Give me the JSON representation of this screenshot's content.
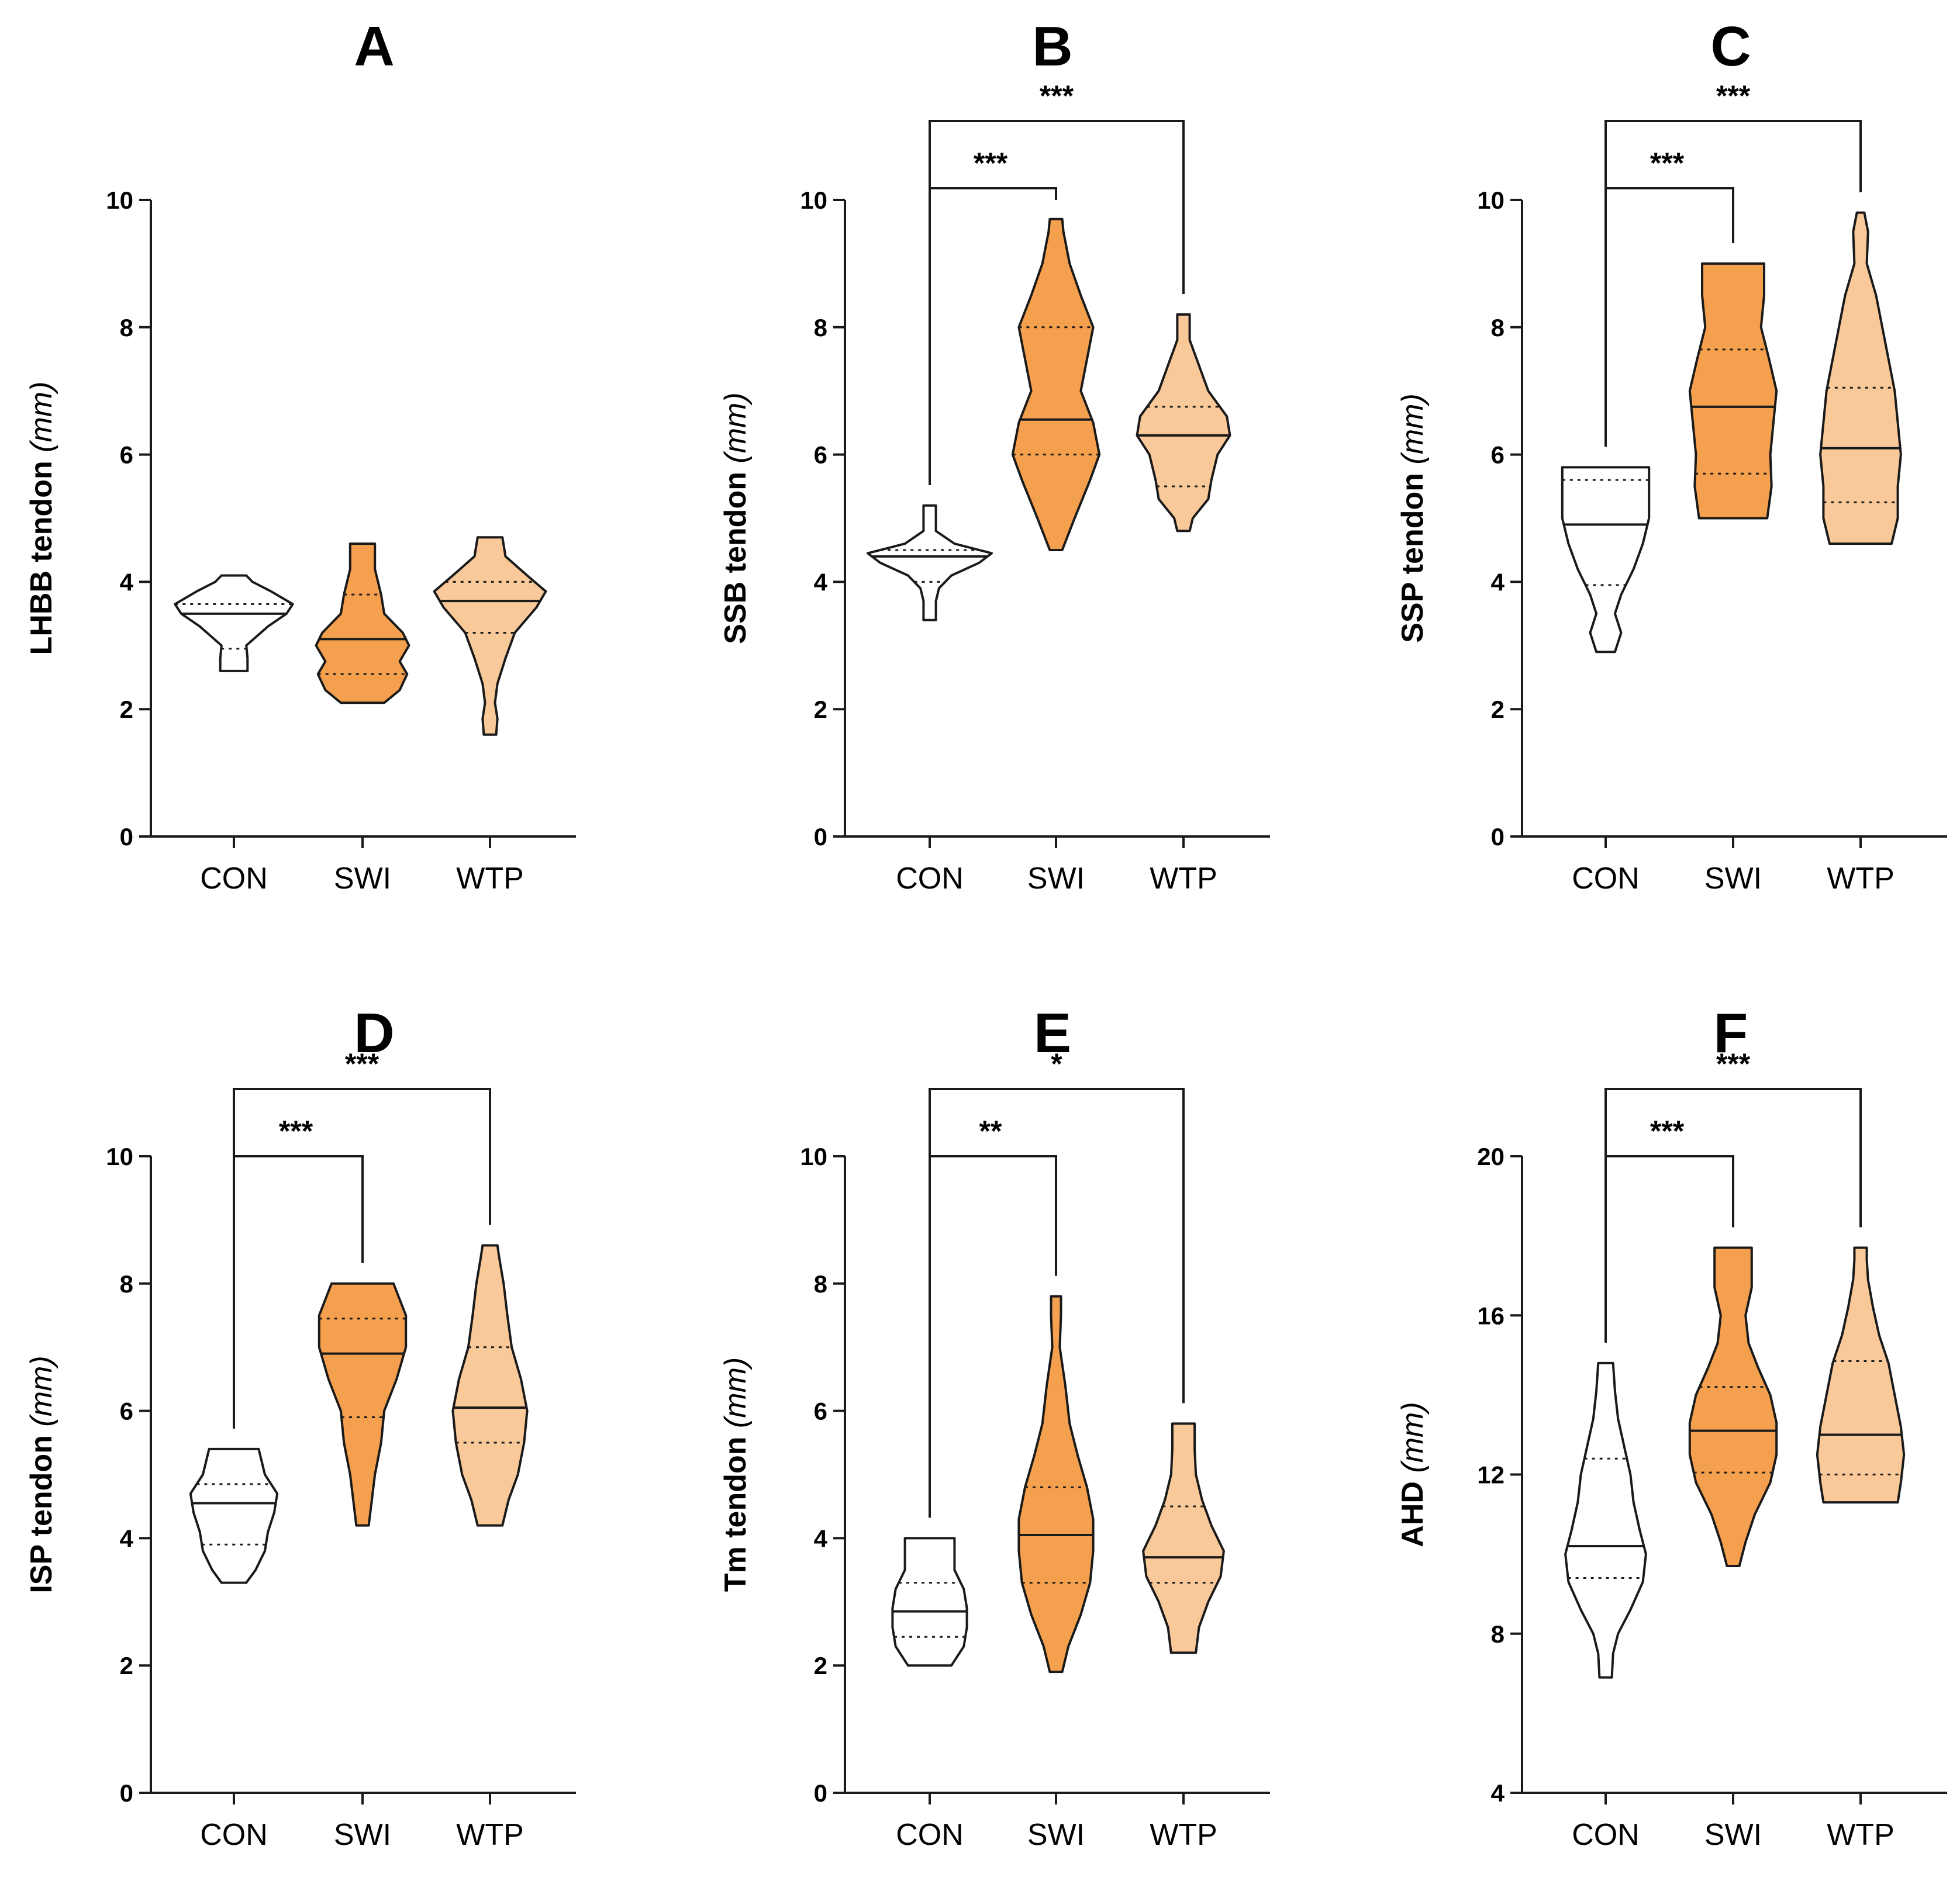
{
  "colors": {
    "CON": "#ffffff",
    "SWI": "#f5a04e",
    "WTP": "#f9c99a",
    "stroke": "#1a1a1a"
  },
  "chart_data": [
    {
      "type": "violin",
      "panel": "A",
      "ylabel": "LHBB tendon",
      "ylabel_unit": "(mm)",
      "ylim": [
        0,
        10
      ],
      "yticks": [
        0,
        2,
        4,
        6,
        8,
        10
      ],
      "categories": [
        "CON",
        "SWI",
        "WTP"
      ],
      "groups": [
        {
          "name": "CON",
          "min": 2.6,
          "max": 4.1,
          "median": 3.5,
          "q1": 2.95,
          "q3": 3.65,
          "profile": [
            [
              2.6,
              0.22
            ],
            [
              2.8,
              0.22
            ],
            [
              3.0,
              0.2
            ],
            [
              3.3,
              0.55
            ],
            [
              3.5,
              0.85
            ],
            [
              3.65,
              0.95
            ],
            [
              3.85,
              0.6
            ],
            [
              4.0,
              0.3
            ],
            [
              4.1,
              0.2
            ]
          ]
        },
        {
          "name": "SWI",
          "min": 2.1,
          "max": 4.6,
          "median": 3.1,
          "q1": 2.55,
          "q3": 3.8,
          "profile": [
            [
              2.1,
              0.35
            ],
            [
              2.3,
              0.6
            ],
            [
              2.55,
              0.72
            ],
            [
              2.75,
              0.6
            ],
            [
              3.0,
              0.75
            ],
            [
              3.2,
              0.65
            ],
            [
              3.5,
              0.35
            ],
            [
              3.8,
              0.3
            ],
            [
              4.2,
              0.2
            ],
            [
              4.6,
              0.2
            ]
          ]
        },
        {
          "name": "WTP",
          "min": 1.6,
          "max": 4.7,
          "median": 3.7,
          "q1": 3.2,
          "q3": 4.0,
          "profile": [
            [
              1.6,
              0.1
            ],
            [
              1.85,
              0.12
            ],
            [
              2.1,
              0.08
            ],
            [
              2.4,
              0.12
            ],
            [
              2.8,
              0.25
            ],
            [
              3.2,
              0.4
            ],
            [
              3.6,
              0.75
            ],
            [
              3.85,
              0.9
            ],
            [
              4.1,
              0.6
            ],
            [
              4.4,
              0.25
            ],
            [
              4.7,
              0.2
            ]
          ]
        }
      ],
      "comparisons": []
    },
    {
      "type": "violin",
      "panel": "B",
      "ylabel": "SSB tendon",
      "ylabel_unit": "(mm)",
      "ylim": [
        0,
        10
      ],
      "yticks": [
        0,
        2,
        4,
        6,
        8,
        10
      ],
      "categories": [
        "CON",
        "SWI",
        "WTP"
      ],
      "groups": [
        {
          "name": "CON",
          "min": 3.4,
          "max": 5.2,
          "median": 4.4,
          "q1": 4.0,
          "q3": 4.5,
          "profile": [
            [
              3.4,
              0.1
            ],
            [
              3.7,
              0.1
            ],
            [
              3.9,
              0.15
            ],
            [
              4.1,
              0.35
            ],
            [
              4.3,
              0.8
            ],
            [
              4.45,
              1.0
            ],
            [
              4.6,
              0.4
            ],
            [
              4.8,
              0.1
            ],
            [
              5.0,
              0.1
            ],
            [
              5.2,
              0.1
            ]
          ]
        },
        {
          "name": "SWI",
          "min": 4.5,
          "max": 9.7,
          "median": 6.55,
          "q1": 6.0,
          "q3": 8.0,
          "profile": [
            [
              4.5,
              0.1
            ],
            [
              5.0,
              0.3
            ],
            [
              5.6,
              0.55
            ],
            [
              6.0,
              0.7
            ],
            [
              6.5,
              0.6
            ],
            [
              7.0,
              0.4
            ],
            [
              7.5,
              0.5
            ],
            [
              8.0,
              0.6
            ],
            [
              8.5,
              0.4
            ],
            [
              9.0,
              0.22
            ],
            [
              9.5,
              0.12
            ],
            [
              9.7,
              0.1
            ]
          ]
        },
        {
          "name": "WTP",
          "min": 4.8,
          "max": 8.2,
          "median": 6.3,
          "q1": 5.5,
          "q3": 6.75,
          "profile": [
            [
              4.8,
              0.1
            ],
            [
              5.0,
              0.15
            ],
            [
              5.3,
              0.4
            ],
            [
              5.6,
              0.45
            ],
            [
              6.0,
              0.55
            ],
            [
              6.3,
              0.75
            ],
            [
              6.6,
              0.7
            ],
            [
              7.0,
              0.4
            ],
            [
              7.4,
              0.25
            ],
            [
              7.8,
              0.1
            ],
            [
              8.2,
              0.1
            ]
          ]
        }
      ],
      "comparisons": [
        {
          "from": "CON",
          "to": "SWI",
          "label": "***"
        },
        {
          "from": "CON",
          "to": "WTP",
          "label": "***"
        }
      ]
    },
    {
      "type": "violin",
      "panel": "C",
      "ylabel": "SSP tendon",
      "ylabel_unit": "(mm)",
      "ylim": [
        0,
        10
      ],
      "yticks": [
        0,
        2,
        4,
        6,
        8,
        10
      ],
      "categories": [
        "CON",
        "SWI",
        "WTP"
      ],
      "groups": [
        {
          "name": "CON",
          "min": 2.9,
          "max": 5.8,
          "median": 4.9,
          "q1": 3.95,
          "q3": 5.6,
          "profile": [
            [
              2.9,
              0.15
            ],
            [
              3.2,
              0.25
            ],
            [
              3.5,
              0.15
            ],
            [
              3.8,
              0.25
            ],
            [
              4.2,
              0.45
            ],
            [
              4.6,
              0.6
            ],
            [
              5.0,
              0.7
            ],
            [
              5.4,
              0.7
            ],
            [
              5.8,
              0.7
            ]
          ]
        },
        {
          "name": "SWI",
          "min": 5.0,
          "max": 9.0,
          "median": 6.75,
          "q1": 5.7,
          "q3": 7.65,
          "profile": [
            [
              5.0,
              0.55
            ],
            [
              5.5,
              0.62
            ],
            [
              6.0,
              0.6
            ],
            [
              6.5,
              0.65
            ],
            [
              7.0,
              0.7
            ],
            [
              7.5,
              0.58
            ],
            [
              8.0,
              0.45
            ],
            [
              8.5,
              0.5
            ],
            [
              9.0,
              0.5
            ]
          ]
        },
        {
          "name": "WTP",
          "min": 4.6,
          "max": 9.8,
          "median": 6.1,
          "q1": 5.25,
          "q3": 7.05,
          "profile": [
            [
              4.6,
              0.5
            ],
            [
              5.0,
              0.6
            ],
            [
              5.5,
              0.6
            ],
            [
              6.0,
              0.65
            ],
            [
              6.5,
              0.6
            ],
            [
              7.0,
              0.55
            ],
            [
              7.5,
              0.45
            ],
            [
              8.0,
              0.35
            ],
            [
              8.5,
              0.25
            ],
            [
              9.0,
              0.1
            ],
            [
              9.5,
              0.12
            ],
            [
              9.8,
              0.06
            ]
          ]
        }
      ],
      "comparisons": [
        {
          "from": "CON",
          "to": "SWI",
          "label": "***"
        },
        {
          "from": "CON",
          "to": "WTP",
          "label": "***"
        }
      ]
    },
    {
      "type": "violin",
      "panel": "D",
      "ylabel": "ISP tendon",
      "ylabel_unit": "(mm)",
      "ylim": [
        0,
        10
      ],
      "yticks": [
        0,
        2,
        4,
        6,
        8,
        10
      ],
      "categories": [
        "CON",
        "SWI",
        "WTP"
      ],
      "groups": [
        {
          "name": "CON",
          "min": 3.3,
          "max": 5.4,
          "median": 4.55,
          "q1": 3.9,
          "q3": 4.85,
          "profile": [
            [
              3.3,
              0.2
            ],
            [
              3.5,
              0.35
            ],
            [
              3.8,
              0.5
            ],
            [
              4.1,
              0.55
            ],
            [
              4.4,
              0.65
            ],
            [
              4.7,
              0.7
            ],
            [
              5.0,
              0.5
            ],
            [
              5.4,
              0.4
            ]
          ]
        },
        {
          "name": "SWI",
          "min": 4.2,
          "max": 8.0,
          "median": 6.9,
          "q1": 5.9,
          "q3": 7.45,
          "profile": [
            [
              4.2,
              0.1
            ],
            [
              4.6,
              0.15
            ],
            [
              5.0,
              0.2
            ],
            [
              5.5,
              0.3
            ],
            [
              6.0,
              0.35
            ],
            [
              6.5,
              0.55
            ],
            [
              7.0,
              0.7
            ],
            [
              7.5,
              0.7
            ],
            [
              8.0,
              0.5
            ]
          ]
        },
        {
          "name": "WTP",
          "min": 4.2,
          "max": 8.6,
          "median": 6.05,
          "q1": 5.5,
          "q3": 7.0,
          "profile": [
            [
              4.2,
              0.2
            ],
            [
              4.6,
              0.3
            ],
            [
              5.0,
              0.45
            ],
            [
              5.5,
              0.55
            ],
            [
              6.0,
              0.6
            ],
            [
              6.5,
              0.5
            ],
            [
              7.0,
              0.35
            ],
            [
              7.5,
              0.28
            ],
            [
              8.0,
              0.22
            ],
            [
              8.4,
              0.15
            ],
            [
              8.6,
              0.12
            ]
          ]
        }
      ],
      "comparisons": [
        {
          "from": "CON",
          "to": "SWI",
          "label": "***"
        },
        {
          "from": "CON",
          "to": "WTP",
          "label": "***"
        }
      ]
    },
    {
      "type": "violin",
      "panel": "E",
      "ylabel": "Tm tendon",
      "ylabel_unit": "(mm)",
      "ylim": [
        0,
        10
      ],
      "yticks": [
        0,
        2,
        4,
        6,
        8,
        10
      ],
      "categories": [
        "CON",
        "SWI",
        "WTP"
      ],
      "groups": [
        {
          "name": "CON",
          "min": 2.0,
          "max": 4.0,
          "median": 2.85,
          "q1": 2.45,
          "q3": 3.3,
          "profile": [
            [
              2.0,
              0.35
            ],
            [
              2.3,
              0.55
            ],
            [
              2.6,
              0.6
            ],
            [
              2.9,
              0.6
            ],
            [
              3.2,
              0.55
            ],
            [
              3.5,
              0.4
            ],
            [
              3.8,
              0.4
            ],
            [
              4.0,
              0.4
            ]
          ]
        },
        {
          "name": "SWI",
          "min": 1.9,
          "max": 7.8,
          "median": 4.05,
          "q1": 3.3,
          "q3": 4.8,
          "profile": [
            [
              1.9,
              0.1
            ],
            [
              2.3,
              0.2
            ],
            [
              2.8,
              0.4
            ],
            [
              3.3,
              0.55
            ],
            [
              3.8,
              0.6
            ],
            [
              4.3,
              0.6
            ],
            [
              4.8,
              0.5
            ],
            [
              5.3,
              0.35
            ],
            [
              5.8,
              0.22
            ],
            [
              6.4,
              0.15
            ],
            [
              7.0,
              0.06
            ],
            [
              7.5,
              0.08
            ],
            [
              7.8,
              0.08
            ]
          ]
        },
        {
          "name": "WTP",
          "min": 2.2,
          "max": 5.8,
          "median": 3.7,
          "q1": 3.3,
          "q3": 4.5,
          "profile": [
            [
              2.2,
              0.2
            ],
            [
              2.6,
              0.25
            ],
            [
              3.0,
              0.4
            ],
            [
              3.4,
              0.6
            ],
            [
              3.8,
              0.65
            ],
            [
              4.2,
              0.45
            ],
            [
              4.6,
              0.3
            ],
            [
              5.0,
              0.2
            ],
            [
              5.4,
              0.18
            ],
            [
              5.8,
              0.18
            ]
          ]
        }
      ],
      "comparisons": [
        {
          "from": "CON",
          "to": "SWI",
          "label": "**"
        },
        {
          "from": "CON",
          "to": "WTP",
          "label": "*"
        }
      ]
    },
    {
      "type": "violin",
      "panel": "F",
      "ylabel": "AHD",
      "ylabel_unit": "(mm)",
      "ylim": [
        4,
        20
      ],
      "yticks": [
        4,
        8,
        12,
        16,
        20
      ],
      "categories": [
        "CON",
        "SWI",
        "WTP"
      ],
      "groups": [
        {
          "name": "CON",
          "min": 6.9,
          "max": 14.8,
          "median": 10.2,
          "q1": 9.4,
          "q3": 12.4,
          "profile": [
            [
              6.9,
              0.1
            ],
            [
              7.5,
              0.12
            ],
            [
              8.0,
              0.2
            ],
            [
              8.6,
              0.4
            ],
            [
              9.3,
              0.6
            ],
            [
              10.0,
              0.65
            ],
            [
              10.6,
              0.55
            ],
            [
              11.3,
              0.45
            ],
            [
              12.0,
              0.4
            ],
            [
              12.7,
              0.3
            ],
            [
              13.4,
              0.2
            ],
            [
              14.1,
              0.15
            ],
            [
              14.8,
              0.12
            ]
          ]
        },
        {
          "name": "SWI",
          "min": 9.7,
          "max": 17.7,
          "median": 13.1,
          "q1": 12.05,
          "q3": 14.2,
          "profile": [
            [
              9.7,
              0.1
            ],
            [
              10.3,
              0.2
            ],
            [
              11.0,
              0.35
            ],
            [
              11.8,
              0.6
            ],
            [
              12.5,
              0.7
            ],
            [
              13.3,
              0.7
            ],
            [
              14.0,
              0.6
            ],
            [
              14.7,
              0.4
            ],
            [
              15.3,
              0.25
            ],
            [
              16.0,
              0.2
            ],
            [
              16.7,
              0.3
            ],
            [
              17.3,
              0.3
            ],
            [
              17.7,
              0.3
            ]
          ]
        },
        {
          "name": "WTP",
          "min": 11.3,
          "max": 17.7,
          "median": 13.0,
          "q1": 12.0,
          "q3": 14.85,
          "profile": [
            [
              11.3,
              0.6
            ],
            [
              11.8,
              0.65
            ],
            [
              12.5,
              0.7
            ],
            [
              13.2,
              0.65
            ],
            [
              14.0,
              0.55
            ],
            [
              14.8,
              0.45
            ],
            [
              15.5,
              0.3
            ],
            [
              16.2,
              0.2
            ],
            [
              16.9,
              0.12
            ],
            [
              17.4,
              0.1
            ],
            [
              17.7,
              0.1
            ]
          ]
        }
      ],
      "comparisons": [
        {
          "from": "CON",
          "to": "SWI",
          "label": "***"
        },
        {
          "from": "CON",
          "to": "WTP",
          "label": "***"
        }
      ]
    }
  ]
}
